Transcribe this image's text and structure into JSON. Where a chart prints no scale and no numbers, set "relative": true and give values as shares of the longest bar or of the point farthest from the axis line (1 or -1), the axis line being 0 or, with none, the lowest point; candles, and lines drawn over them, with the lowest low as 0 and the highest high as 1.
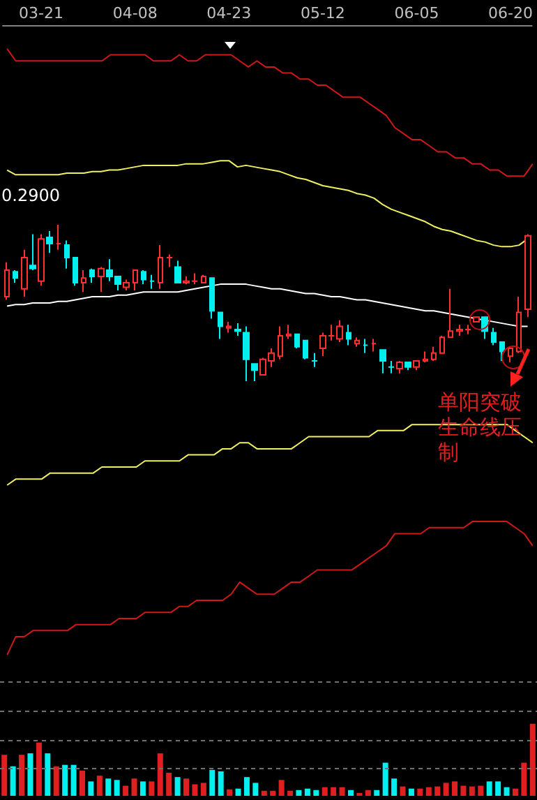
{
  "chart_data": [
    {
      "type": "candlestick",
      "relative": true,
      "categories": [
        null,
        null,
        null,
        null,
        "03-21",
        null,
        null,
        null,
        null,
        null,
        null,
        null,
        null,
        null,
        null,
        "04-08",
        null,
        null,
        null,
        null,
        null,
        null,
        null,
        null,
        null,
        null,
        "04-23",
        null,
        null,
        null,
        null,
        null,
        null,
        null,
        null,
        null,
        null,
        "05-12",
        null,
        null,
        null,
        null,
        null,
        null,
        null,
        null,
        null,
        null,
        "06-05",
        null,
        null,
        null,
        null,
        null,
        null,
        null,
        null,
        null,
        null,
        "06-20",
        null,
        null
      ],
      "ohlc": [
        [
          0.54,
          0.76,
          0.52,
          0.71
        ],
        [
          0.7,
          0.71,
          0.63,
          0.66
        ],
        [
          0.59,
          0.84,
          0.54,
          0.79
        ],
        [
          0.74,
          0.94,
          0.71,
          0.72
        ],
        [
          0.64,
          0.94,
          0.61,
          0.91
        ],
        [
          0.92,
          0.96,
          0.82,
          0.88
        ],
        [
          0.88,
          1,
          0.84,
          0.88
        ],
        [
          0.87,
          0.9,
          0.72,
          0.79
        ],
        [
          0.79,
          0.79,
          0.61,
          0.63
        ],
        [
          0.63,
          0.71,
          0.57,
          0.66
        ],
        [
          0.71,
          0.72,
          0.63,
          0.67
        ],
        [
          0.67,
          0.73,
          0.57,
          0.72
        ],
        [
          0.71,
          0.78,
          0.64,
          0.67
        ],
        [
          0.67,
          0.67,
          0.58,
          0.62
        ],
        [
          0.6,
          0.65,
          0.58,
          0.63
        ],
        [
          0.63,
          0.71,
          0.58,
          0.71
        ],
        [
          0.7,
          0.71,
          0.62,
          0.65
        ],
        [
          0.64,
          0.68,
          0.59,
          0.64
        ],
        [
          0.63,
          0.87,
          0.59,
          0.79
        ],
        [
          0.79,
          0.81,
          0.73,
          0.79
        ],
        [
          0.73,
          0.77,
          0.63,
          0.63
        ],
        [
          0.63,
          0.67,
          0.62,
          0.64
        ],
        [
          0.64,
          0.69,
          0.62,
          0.64
        ],
        [
          0.63,
          0.68,
          0.63,
          0.67
        ],
        [
          0.66,
          0.66,
          0.4,
          0.45
        ],
        [
          0.44,
          0.44,
          0.27,
          0.35
        ],
        [
          0.34,
          0.38,
          0.31,
          0.35
        ],
        [
          0.33,
          0.37,
          0.29,
          0.32
        ],
        [
          0.31,
          0.35,
          0,
          0.14
        ],
        [
          0.11,
          0.11,
          0,
          0.07
        ],
        [
          0.04,
          0.15,
          0.04,
          0.14
        ],
        [
          0.13,
          0.21,
          0.09,
          0.18
        ],
        [
          0.16,
          0.35,
          0.14,
          0.29
        ],
        [
          0.29,
          0.36,
          0.27,
          0.3
        ],
        [
          0.3,
          0.3,
          0.21,
          0.22
        ],
        [
          0.26,
          0.26,
          0.14,
          0.15
        ],
        [
          0.13,
          0.18,
          0.09,
          0.13
        ],
        [
          0.21,
          0.31,
          0.16,
          0.29
        ],
        [
          0.29,
          0.36,
          0.26,
          0.29
        ],
        [
          0.27,
          0.39,
          0.25,
          0.35
        ],
        [
          0.31,
          0.36,
          0.23,
          0.27
        ],
        [
          0.24,
          0.28,
          0.22,
          0.26
        ],
        [
          0.23,
          0.27,
          0.18,
          0.23
        ],
        [
          0.24,
          0.27,
          0.19,
          0.24
        ],
        [
          0.2,
          0.2,
          0.05,
          0.13
        ],
        [
          0.09,
          0.13,
          0.05,
          0.09
        ],
        [
          0.08,
          0.13,
          0.05,
          0.12
        ],
        [
          0.12,
          0.12,
          0.07,
          0.09
        ],
        [
          0.09,
          0.13,
          0.07,
          0.13
        ],
        [
          0.13,
          0.19,
          0.12,
          0.14
        ],
        [
          0.14,
          0.22,
          0.13,
          0.18
        ],
        [
          0.18,
          0.29,
          0.18,
          0.28
        ],
        [
          0.28,
          0.59,
          0.28,
          0.32
        ],
        [
          0.32,
          0.36,
          0.29,
          0.33
        ],
        [
          0.33,
          0.36,
          0.3,
          0.33
        ],
        [
          0.38,
          0.41,
          0.38,
          0.41
        ],
        [
          0.41,
          0.41,
          0.27,
          0.32
        ],
        [
          0.31,
          0.34,
          0.23,
          0.25
        ],
        [
          0.25,
          0.25,
          0.13,
          0.19
        ],
        [
          0.16,
          0.22,
          0.12,
          0.21
        ],
        [
          0.19,
          0.54,
          0.18,
          0.44
        ],
        [
          0.46,
          0.94,
          0.41,
          0.93
        ]
      ],
      "series": [
        {
          "type": "line",
          "color": "#f0f060",
          "values": [
            1.35,
            1.32,
            1.32,
            1.32,
            1.32,
            1.32,
            1.32,
            1.33,
            1.33,
            1.33,
            1.34,
            1.34,
            1.35,
            1.35,
            1.36,
            1.37,
            1.38,
            1.38,
            1.38,
            1.38,
            1.38,
            1.39,
            1.39,
            1.39,
            1.4,
            1.41,
            1.41,
            1.37,
            1.38,
            1.37,
            1.36,
            1.35,
            1.34,
            1.32,
            1.3,
            1.29,
            1.27,
            1.25,
            1.24,
            1.23,
            1.22,
            1.2,
            1.19,
            1.17,
            1.13,
            1.1,
            1.08,
            1.06,
            1.04,
            1.02,
            0.99,
            0.97,
            0.96,
            0.94,
            0.92,
            0.9,
            0.89,
            0.87,
            0.86,
            0.86,
            0.87,
            0.91
          ]
        },
        {
          "type": "line",
          "color": "#ffffff",
          "values": [
            0.48,
            0.49,
            0.49,
            0.5,
            0.5,
            0.5,
            0.51,
            0.51,
            0.52,
            0.53,
            0.54,
            0.54,
            0.54,
            0.55,
            0.55,
            0.56,
            0.57,
            0.57,
            0.57,
            0.57,
            0.57,
            0.58,
            0.59,
            0.6,
            0.61,
            0.62,
            0.62,
            0.62,
            0.62,
            0.61,
            0.6,
            0.59,
            0.59,
            0.58,
            0.57,
            0.56,
            0.56,
            0.55,
            0.54,
            0.54,
            0.53,
            0.52,
            0.52,
            0.51,
            0.5,
            0.49,
            0.48,
            0.47,
            0.46,
            0.45,
            0.45,
            0.44,
            0.43,
            0.42,
            0.41,
            0.4,
            0.39,
            0.38,
            0.37,
            0.36,
            0.35,
            0.35
          ]
        }
      ],
      "annotations": [
        "0.2900",
        "单阳突破生命线压制"
      ]
    },
    {
      "type": "line",
      "relative": true,
      "categories": [
        null,
        null,
        null,
        null,
        null,
        null,
        null,
        null,
        null,
        null,
        null,
        null,
        null,
        null,
        null,
        null,
        null,
        null,
        null,
        null,
        null,
        null,
        null,
        null,
        null,
        null,
        null,
        null,
        null,
        null,
        null,
        null,
        null,
        null,
        null,
        null,
        null,
        null,
        null,
        null,
        null,
        null,
        null,
        null,
        null,
        null,
        null,
        null,
        null,
        null,
        null,
        null,
        null,
        null,
        null,
        null,
        null,
        null,
        null,
        null,
        null,
        null
      ],
      "series": [
        {
          "color": "#d01818",
          "values": [
            1,
            0.98,
            0.98,
            0.98,
            0.98,
            0.98,
            0.98,
            0.98,
            0.98,
            0.98,
            0.98,
            0.98,
            0.99,
            0.99,
            0.99,
            0.99,
            0.99,
            0.98,
            0.98,
            0.98,
            0.99,
            0.98,
            0.98,
            0.99,
            0.99,
            0.99,
            0.99,
            0.98,
            0.97,
            0.98,
            0.97,
            0.97,
            0.96,
            0.96,
            0.95,
            0.95,
            0.94,
            0.94,
            0.93,
            0.92,
            0.92,
            0.92,
            0.91,
            0.9,
            0.89,
            0.87,
            0.86,
            0.85,
            0.85,
            0.84,
            0.83,
            0.83,
            0.82,
            0.82,
            0.81,
            0.81,
            0.8,
            0.8,
            0.79,
            0.79,
            0.79,
            0.81
          ]
        },
        {
          "color": "#f0f060",
          "values": [
            0.28,
            0.29,
            0.29,
            0.29,
            0.29,
            0.3,
            0.3,
            0.3,
            0.3,
            0.3,
            0.3,
            0.31,
            0.31,
            0.31,
            0.31,
            0.31,
            0.32,
            0.32,
            0.32,
            0.32,
            0.32,
            0.33,
            0.33,
            0.33,
            0.33,
            0.34,
            0.34,
            0.35,
            0.35,
            0.34,
            0.34,
            0.34,
            0.34,
            0.34,
            0.35,
            0.36,
            0.36,
            0.36,
            0.36,
            0.36,
            0.36,
            0.36,
            0.36,
            0.37,
            0.37,
            0.37,
            0.37,
            0.38,
            0.38,
            0.38,
            0.38,
            0.38,
            0.38,
            0.38,
            0.38,
            0.38,
            0.38,
            0.38,
            0.38,
            0.37,
            0.36,
            0.35
          ]
        },
        {
          "color": "#d01818",
          "values": [
            0,
            0.03,
            0.03,
            0.04,
            0.04,
            0.04,
            0.04,
            0.04,
            0.05,
            0.05,
            0.05,
            0.05,
            0.05,
            0.06,
            0.06,
            0.06,
            0.07,
            0.07,
            0.07,
            0.07,
            0.08,
            0.08,
            0.09,
            0.09,
            0.09,
            0.09,
            0.1,
            0.12,
            0.11,
            0.1,
            0.1,
            0.1,
            0.11,
            0.12,
            0.12,
            0.13,
            0.14,
            0.14,
            0.14,
            0.14,
            0.14,
            0.15,
            0.16,
            0.17,
            0.18,
            0.2,
            0.2,
            0.2,
            0.2,
            0.21,
            0.21,
            0.21,
            0.21,
            0.21,
            0.22,
            0.22,
            0.22,
            0.22,
            0.22,
            0.21,
            0.2,
            0.18
          ]
        }
      ]
    },
    {
      "type": "bar",
      "relative": true,
      "categories": [
        null,
        null,
        null,
        null,
        null,
        null,
        null,
        null,
        null,
        null,
        null,
        null,
        null,
        null,
        null,
        null,
        null,
        null,
        null,
        null,
        null,
        null,
        null,
        null,
        null,
        null,
        null,
        null,
        null,
        null,
        null,
        null,
        null,
        null,
        null,
        null,
        null,
        null,
        null,
        null,
        null,
        null,
        null,
        null,
        null,
        null,
        null,
        null,
        null,
        null,
        null,
        null,
        null,
        null,
        null,
        null,
        null,
        null,
        null,
        null,
        null,
        null
      ],
      "values": [
        0.57,
        0.41,
        0.57,
        0.59,
        0.74,
        0.59,
        0.41,
        0.43,
        0.43,
        0.35,
        0.2,
        0.28,
        0.24,
        0.22,
        0.14,
        0.24,
        0.2,
        0.2,
        0.59,
        0.32,
        0.26,
        0.24,
        0.16,
        0.18,
        0.36,
        0.34,
        0.09,
        0.1,
        0.26,
        0.18,
        0.07,
        0.07,
        0.22,
        0.07,
        0.08,
        0.1,
        0.08,
        0.12,
        0.12,
        0.12,
        0.08,
        0.04,
        0.08,
        0.08,
        0.46,
        0.24,
        0.13,
        0.1,
        0.1,
        0.12,
        0.13,
        0.18,
        0.2,
        0.14,
        0.13,
        0.14,
        0.2,
        0.2,
        0.12,
        0.1,
        0.46,
        1
      ],
      "colors": [
        "#e02020",
        "#00f0f0",
        "#e02020",
        "#00f0f0",
        "#e02020",
        "#00f0f0",
        "#e02020",
        "#00f0f0",
        "#00f0f0",
        "#e02020",
        "#00f0f0",
        "#e02020",
        "#00f0f0",
        "#00f0f0",
        "#e02020",
        "#e02020",
        "#00f0f0",
        "#e02020",
        "#e02020",
        "#e02020",
        "#00f0f0",
        "#e02020",
        "#e02020",
        "#e02020",
        "#00f0f0",
        "#00f0f0",
        "#e02020",
        "#00f0f0",
        "#00f0f0",
        "#00f0f0",
        "#e02020",
        "#e02020",
        "#e02020",
        "#e02020",
        "#00f0f0",
        "#00f0f0",
        "#00f0f0",
        "#e02020",
        "#e02020",
        "#e02020",
        "#00f0f0",
        "#e02020",
        "#e02020",
        "#00f0f0",
        "#00f0f0",
        "#00f0f0",
        "#e02020",
        "#00f0f0",
        "#e02020",
        "#e02020",
        "#e02020",
        "#e02020",
        "#e02020",
        "#e02020",
        "#e02020",
        "#e02020",
        "#00f0f0",
        "#00f0f0",
        "#00f0f0",
        "#e02020",
        "#e02020",
        "#e02020"
      ],
      "ref_lines": [
        {
          "axis": "y",
          "value": 0.39,
          "color": "#707070",
          "line_style": "dashed"
        },
        {
          "axis": "y",
          "value": 0.78,
          "color": "#707070",
          "line_style": "dashed"
        },
        {
          "axis": "y",
          "value": 1.18,
          "color": "#707070",
          "line_style": "dashed"
        },
        {
          "axis": "y",
          "value": 1.59,
          "color": "#707070",
          "line_style": "dashed"
        }
      ]
    }
  ]
}
